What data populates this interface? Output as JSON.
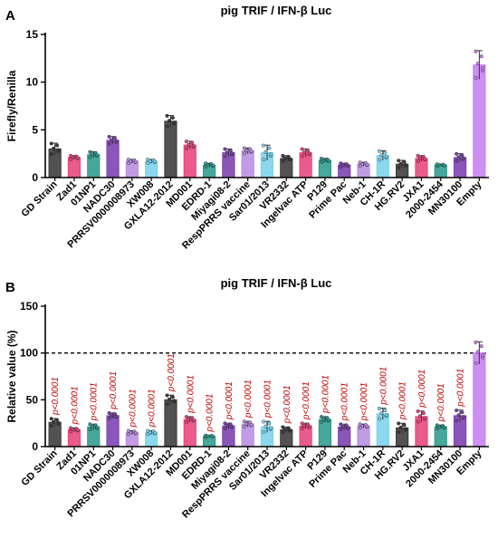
{
  "figure": {
    "panels": [
      "A",
      "B"
    ],
    "categories": [
      "GD Strain",
      "Zad1",
      "01NP1",
      "NADC30",
      "PRRSV0000008973",
      "XW008",
      "GXLA12-2012",
      "MD001",
      "EDRD-1",
      "Miyagi08-2",
      "RespPRRS vaccine",
      "Sar01/2013",
      "VR2332",
      "Ingelvac ATP",
      "P129",
      "Prime Pac",
      "Neb-1",
      "CH-1R",
      "HG.RV2",
      "JXA1",
      "2000-2454",
      "MN30100",
      "Empty"
    ],
    "colors": [
      "#3a3a3a",
      "#e8437c",
      "#2d9b8c",
      "#7b3fb0",
      "#b88ee0",
      "#7ad3ec",
      "#3a3a3a",
      "#e8437c",
      "#2d9b8c",
      "#7b3fb0",
      "#b88ee0",
      "#7ad3ec",
      "#3a3a3a",
      "#e8437c",
      "#2d9b8c",
      "#7b3fb0",
      "#b88ee0",
      "#7ad3ec",
      "#3a3a3a",
      "#e8437c",
      "#2d9b8c",
      "#7b3fb0",
      "#c77ff0"
    ]
  },
  "chart_data": [
    {
      "type": "bar",
      "panel": "A",
      "title": "pig TRIF / IFN-β Luc",
      "ylabel": "Firefly/Renilla",
      "ylim": [
        0,
        15
      ],
      "yticks": [
        "0",
        "5",
        "10",
        "15"
      ],
      "values": [
        3.0,
        2.1,
        2.4,
        3.9,
        1.7,
        1.7,
        5.9,
        3.4,
        1.3,
        2.6,
        2.8,
        2.6,
        2.0,
        2.6,
        1.8,
        1.3,
        1.4,
        2.3,
        1.4,
        2.0,
        1.3,
        2.1,
        11.8
      ],
      "errors": [
        0.6,
        0.2,
        0.3,
        0.4,
        0.2,
        0.2,
        0.6,
        0.4,
        0.2,
        0.4,
        0.3,
        0.8,
        0.3,
        0.4,
        0.2,
        0.2,
        0.2,
        0.5,
        0.4,
        0.3,
        0.1,
        0.4,
        1.5
      ]
    },
    {
      "type": "bar",
      "panel": "B",
      "title": "pig TRIF / IFN-β Luc",
      "ylabel": "Relative value (%)",
      "ylim": [
        0,
        150
      ],
      "yticks": [
        "0",
        "50",
        "100",
        "150"
      ],
      "reference_line": 100,
      "values": [
        26,
        18,
        21,
        33,
        15,
        15,
        50,
        29,
        11,
        22,
        24,
        21,
        18,
        22,
        29,
        21,
        22,
        35,
        20,
        32,
        21,
        33,
        100
      ],
      "errors": [
        4,
        2,
        3,
        3,
        2,
        2,
        5,
        3,
        1,
        3,
        3,
        6,
        3,
        3,
        3,
        3,
        2,
        6,
        5,
        6,
        2,
        6,
        12
      ],
      "annotations": [
        "p<0.0001",
        "p<0.0001",
        "p<0.0001",
        "p<0.0001",
        "p<0.0001",
        "p<0.0001",
        "p<0.0001",
        "p<0.0001",
        "p<0.0001",
        "p<0.0001",
        "p<0.0001",
        "p<0.0001",
        "p<0.0001",
        "p<0.0001",
        "p<0.0001",
        "p<0.0001",
        "p<0.0001",
        "p<0.0001",
        "p<0.0001",
        "p<0.0001",
        "p<0.0001",
        "p<0.0001",
        ""
      ]
    }
  ]
}
